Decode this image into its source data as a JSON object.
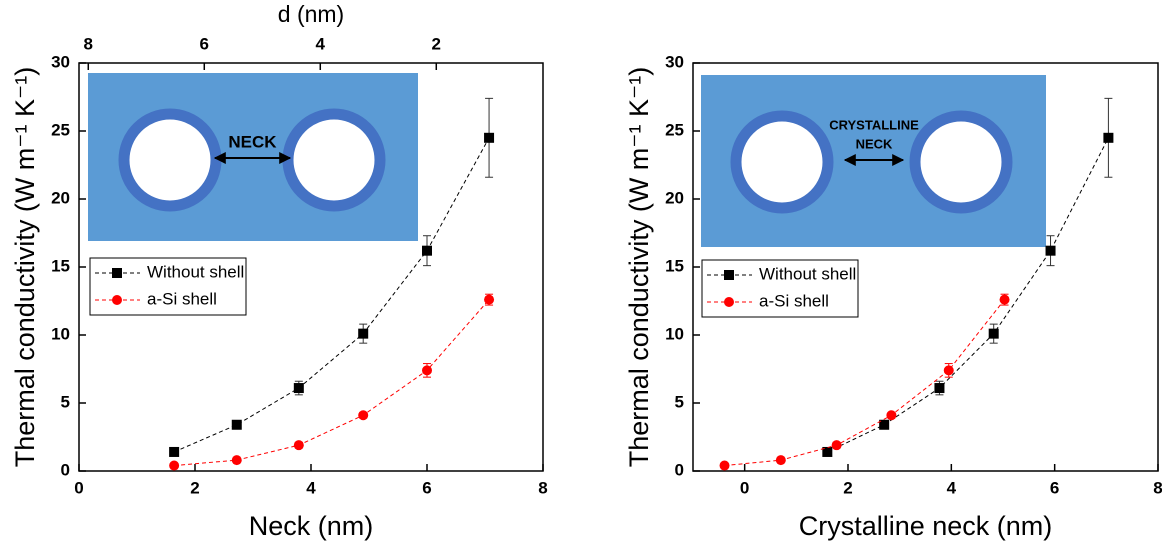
{
  "chart_data": [
    {
      "type": "scatter-line",
      "xlabel": "Neck (nm)",
      "ylabel": "Thermal conductivity (W m⁻¹ K⁻¹)",
      "x2label": "d (nm)",
      "xlim": [
        0,
        8
      ],
      "xticks": [
        0,
        2,
        4,
        6,
        8
      ],
      "x2lim": [
        8.16,
        0.16
      ],
      "x2ticks": [
        8,
        6,
        4,
        2
      ],
      "ylim": [
        0,
        30
      ],
      "yticks": [
        0,
        5,
        10,
        15,
        20,
        25,
        30
      ],
      "legend": "center left",
      "inset_label": [
        "NECK"
      ],
      "series": [
        {
          "name": "Without shell",
          "color": "#000000",
          "marker": "square",
          "x": [
            1.64,
            2.72,
            3.79,
            4.9,
            6.0,
            7.07
          ],
          "values": [
            1.4,
            3.4,
            6.1,
            10.1,
            16.2,
            24.5
          ],
          "errors": [
            0.2,
            0.2,
            0.5,
            0.7,
            1.1,
            2.9
          ]
        },
        {
          "name": "a-Si shell",
          "color": "#ff0000",
          "marker": "circle",
          "x": [
            1.64,
            2.72,
            3.79,
            4.9,
            6.0,
            7.07
          ],
          "values": [
            0.4,
            0.8,
            1.9,
            4.1,
            7.4,
            12.6
          ],
          "errors": [
            0.1,
            0.1,
            0.2,
            0.2,
            0.5,
            0.4
          ]
        }
      ]
    },
    {
      "type": "scatter-line",
      "xlabel": "Crystalline neck (nm)",
      "ylabel": "Thermal conductivity (W m⁻¹ K⁻¹)",
      "xlim": [
        -1,
        8
      ],
      "xticks": [
        0,
        2,
        4,
        6,
        8
      ],
      "ylim": [
        0,
        30
      ],
      "yticks": [
        0,
        5,
        10,
        15,
        20,
        25,
        30
      ],
      "legend": "center left",
      "inset_label": [
        "CRYSTALLINE",
        "NECK"
      ],
      "series": [
        {
          "name": "Without shell",
          "color": "#000000",
          "marker": "square",
          "x": [
            1.6,
            2.7,
            3.77,
            4.82,
            5.92,
            7.04
          ],
          "values": [
            1.4,
            3.4,
            6.1,
            10.1,
            16.2,
            24.5
          ],
          "errors": [
            0.2,
            0.2,
            0.5,
            0.7,
            1.1,
            2.9
          ]
        },
        {
          "name": "a-Si shell",
          "color": "#ff0000",
          "marker": "circle",
          "x": [
            -0.39,
            0.7,
            1.78,
            2.84,
            3.95,
            5.03
          ],
          "values": [
            0.4,
            0.8,
            1.9,
            4.1,
            7.4,
            12.6
          ],
          "errors": [
            0.1,
            0.1,
            0.2,
            0.2,
            0.5,
            0.4
          ]
        }
      ]
    }
  ]
}
